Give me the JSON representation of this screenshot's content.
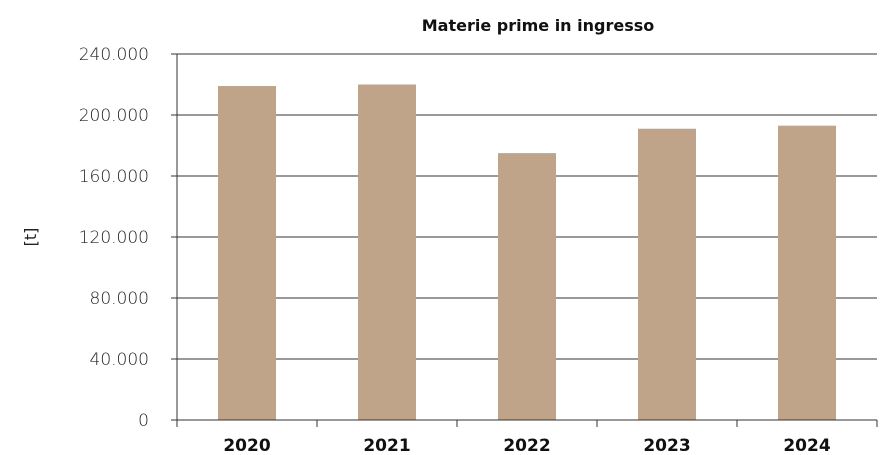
{
  "chart_data": {
    "type": "bar",
    "title": "Materie prime in ingresso",
    "xlabel": "",
    "ylabel": "[t]",
    "categories": [
      "2020",
      "2021",
      "2022",
      "2023",
      "2024"
    ],
    "values": [
      219000,
      220000,
      175000,
      191000,
      193000
    ],
    "ylim": [
      0,
      240000
    ],
    "yticks": [
      0,
      40000,
      80000,
      120000,
      160000,
      200000,
      240000
    ],
    "ytick_labels": [
      "0",
      "40.000",
      "80.000",
      "120.000",
      "160.000",
      "200.000",
      "240.000"
    ],
    "grid": true,
    "bar_color": "#bfa48a",
    "legend": "none"
  }
}
